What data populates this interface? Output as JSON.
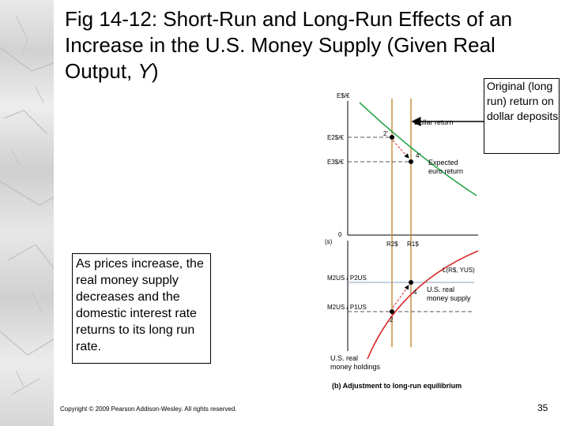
{
  "slide": {
    "title_part1": "Fig 14-12: Short-Run and Long-Run Effects of an Increase in the U.S. Money Supply (Given Real Output, ",
    "title_italic": "Y",
    "title_part2": ")",
    "callout": "Original (long run) return on dollar deposits",
    "note": "As prices increase, the real money supply decreases and the domestic interest rate returns to its long run rate.",
    "copyright": "Copyright © 2009 Pearson Addison-Wesley. All rights reserved.",
    "page_number": "35"
  },
  "diagram": {
    "top_axis_label": "E$/€",
    "e2_label": "E2$/€",
    "e3_label": "E3$/€",
    "dollar_return": "Dollar return",
    "expected_euro_1": "Expected",
    "expected_euro_2": "euro return",
    "point_2_top": "2'",
    "point_4_top": "4'",
    "origin": "0",
    "axis_mid_left": "(s)",
    "r2_label": "R2$",
    "r1_label": "R1$",
    "l_label": "L(R$, YUS)",
    "m2p2_label": "M2US / P2US",
    "m2p1_label": "M2US / P1US",
    "point_4": "4",
    "point_2": "2",
    "us_real_money_supply_1": "U.S. real",
    "us_real_money_supply_2": "money supply",
    "us_real_money_holdings_1": "U.S. real",
    "us_real_money_holdings_2": "money holdings",
    "caption": "(b) Adjustment to long-run equilibrium",
    "colors": {
      "dollar_return": "#c28a3a",
      "euro_return": "#2aa84a",
      "liquidity": "#d82a2a",
      "guide": "#8aa0c0"
    }
  }
}
